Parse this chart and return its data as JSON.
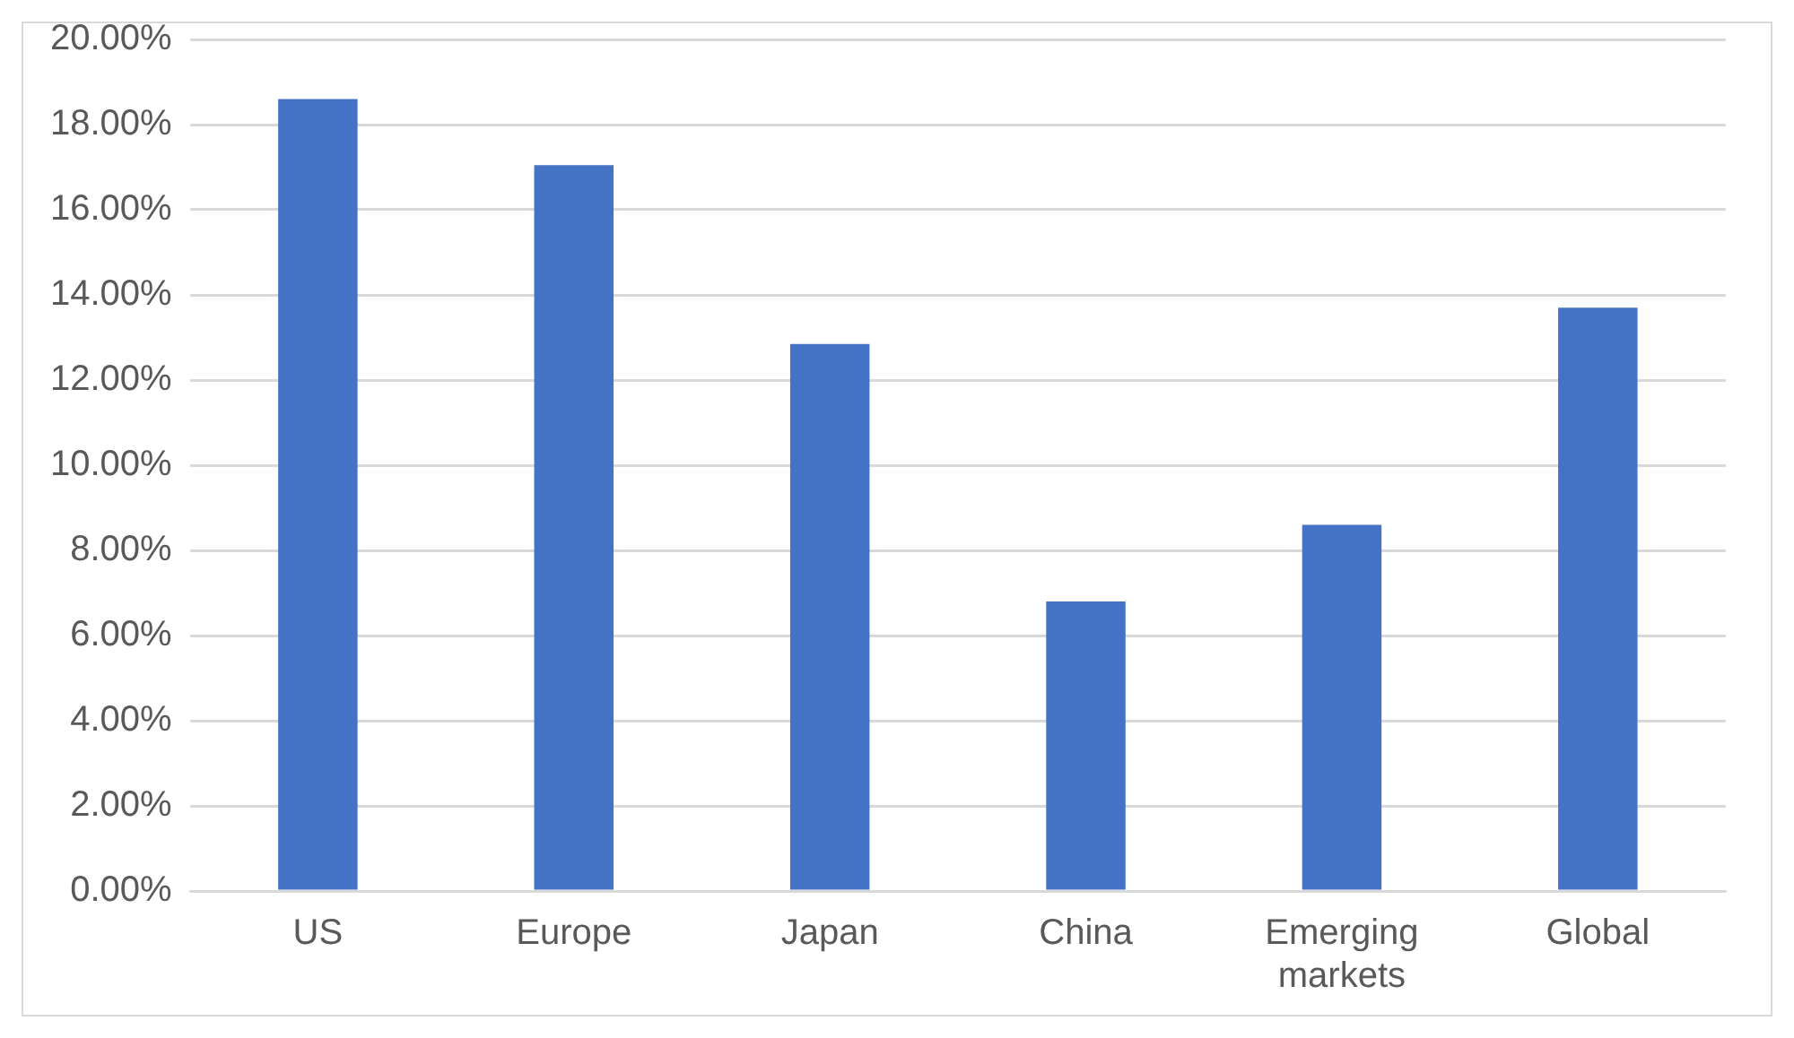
{
  "chart_data": {
    "type": "bar",
    "categories": [
      "US",
      "Europe",
      "Japan",
      "China",
      "Emerging markets",
      "Global"
    ],
    "values": [
      18.6,
      17.05,
      12.85,
      6.8,
      8.6,
      13.7
    ],
    "color": "#4472c4",
    "ylim": [
      0,
      20
    ],
    "yticks": [
      {
        "value": 0,
        "label": "0.00%"
      },
      {
        "value": 2,
        "label": "2.00%"
      },
      {
        "value": 4,
        "label": "4.00%"
      },
      {
        "value": 6,
        "label": "6.00%"
      },
      {
        "value": 8,
        "label": "8.00%"
      },
      {
        "value": 10,
        "label": "10.00%"
      },
      {
        "value": 12,
        "label": "12.00%"
      },
      {
        "value": 14,
        "label": "14.00%"
      },
      {
        "value": 16,
        "label": "16.00%"
      },
      {
        "value": 18,
        "label": "18.00%"
      },
      {
        "value": 20,
        "label": "20.00%"
      }
    ],
    "grid": "y",
    "legend": false
  }
}
